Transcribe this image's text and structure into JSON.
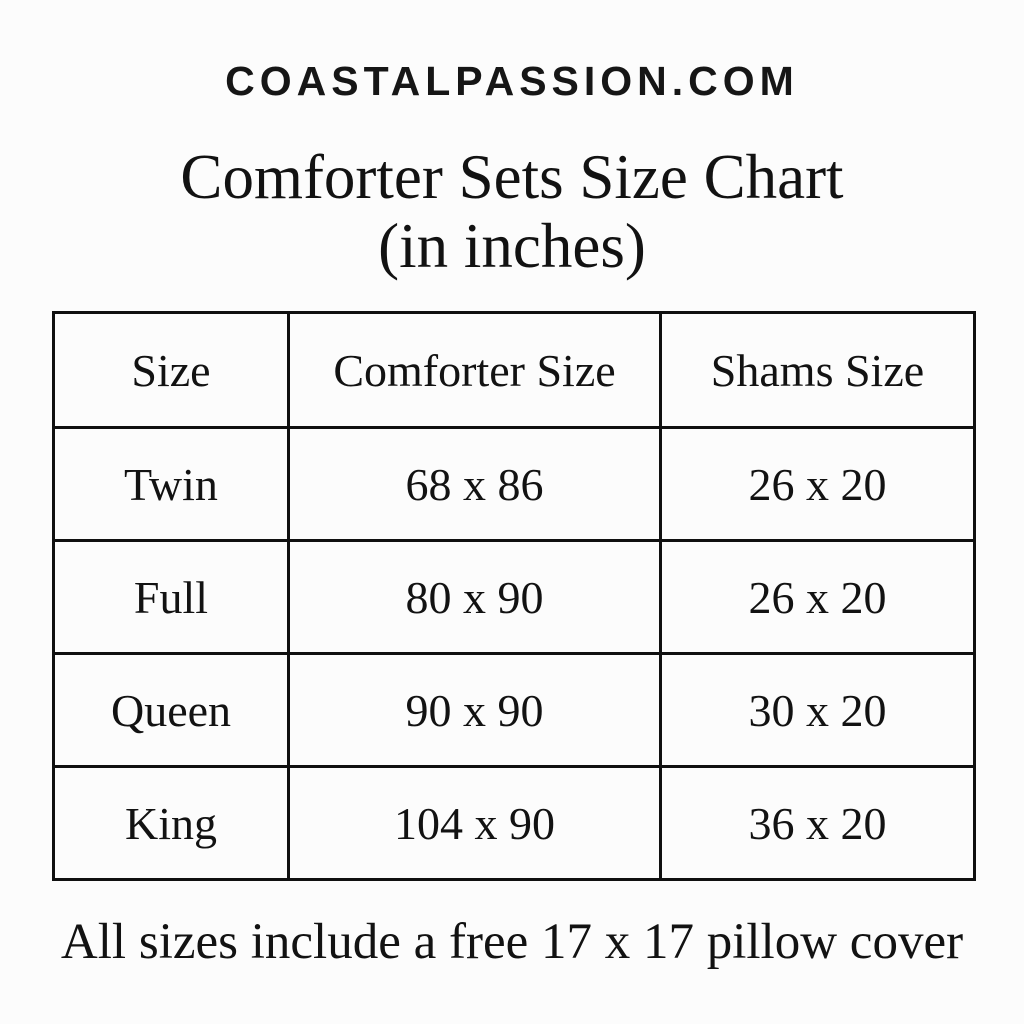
{
  "page": {
    "background": "#fcfcfc",
    "text_color": "#121212",
    "border_color": "#101010"
  },
  "header": {
    "site_name": "COASTALPASSION.COM",
    "title_line1": "Comforter Sets Size Chart",
    "title_line2": "(in inches)"
  },
  "table": {
    "columns": [
      "Size",
      "Comforter Size",
      "Shams Size"
    ],
    "rows": [
      {
        "size": "Twin",
        "comforter_size": "68 x 86",
        "shams_size": "26 x 20"
      },
      {
        "size": "Full",
        "comforter_size": "80 x 90",
        "shams_size": "26 x 20"
      },
      {
        "size": "Queen",
        "comforter_size": "90 x 90",
        "shams_size": "30 x 20"
      },
      {
        "size": "King",
        "comforter_size": "104 x 90",
        "shams_size": "36 x 20"
      }
    ]
  },
  "footer": {
    "note": "All sizes include a free 17 x 17 pillow cover"
  },
  "chart_data": {
    "type": "table",
    "title": "Comforter Sets Size Chart (in inches)",
    "columns": [
      "Size",
      "Comforter Size",
      "Shams Size"
    ],
    "rows": [
      [
        "Twin",
        "68 x 86",
        "26 x 20"
      ],
      [
        "Full",
        "80 x 90",
        "26 x 20"
      ],
      [
        "Queen",
        "90 x 90",
        "30 x 20"
      ],
      [
        "King",
        "104 x 90",
        "36 x 20"
      ]
    ],
    "footnote": "All sizes include a free 17 x 17 pillow cover"
  }
}
